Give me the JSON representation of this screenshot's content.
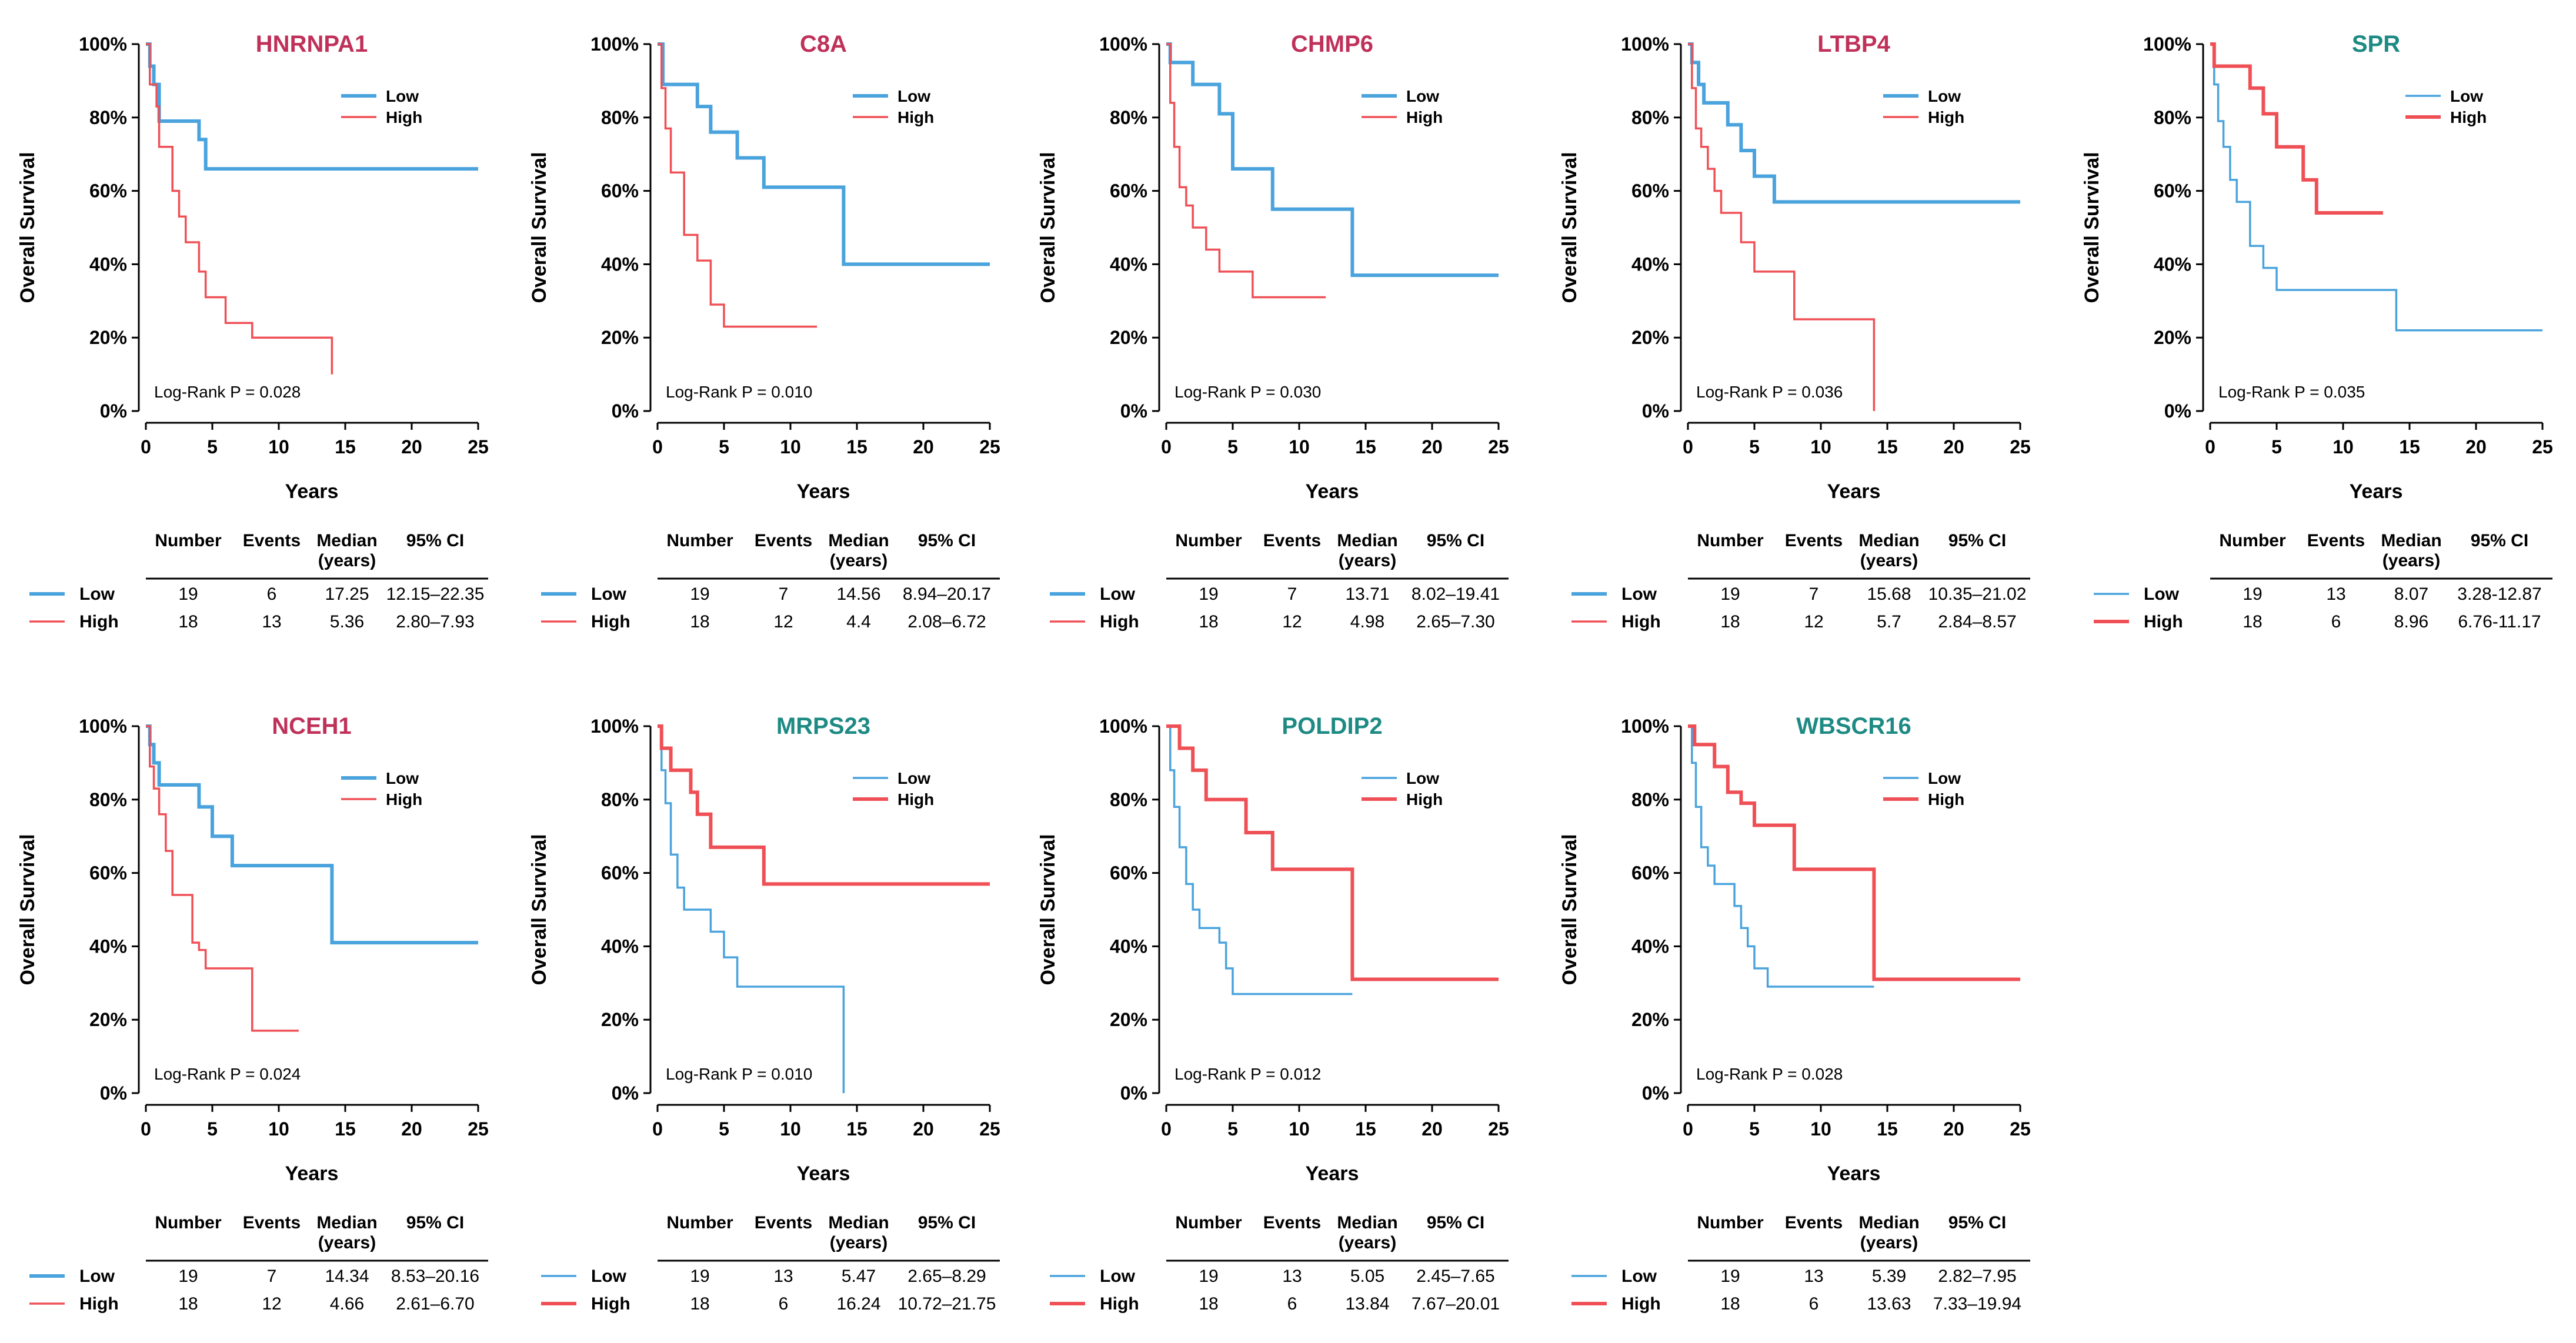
{
  "axis_text": {
    "ylabel": "Overall Survival",
    "xlabel": "Years",
    "log_rank_label": "Log-Rank P = ",
    "y_ticks": [
      "0%",
      "20%",
      "40%",
      "60%",
      "80%",
      "100%"
    ],
    "x_ticks": [
      "0",
      "5",
      "10",
      "15",
      "20",
      "25"
    ]
  },
  "table_headers": {
    "number": "Number",
    "events": "Events",
    "median_line1": "Median",
    "median_line2": "(years)",
    "ci": "95% CI"
  },
  "legend_labels": {
    "low": "Low",
    "high": "High"
  },
  "colors": {
    "low": "#4aa3dd",
    "high": "#ef5056",
    "title_red": "#c0315a",
    "title_teal": "#1d8a83",
    "text": "#000000",
    "axis": "#000000"
  },
  "chart_data": [
    {
      "type": "line",
      "subtype": "kaplan-meier",
      "title": "HNRNPA1",
      "title_color": "red",
      "emphasis": "low",
      "p_value": "0.028",
      "xlim": [
        0,
        25
      ],
      "ylim": [
        0,
        100
      ],
      "series": [
        {
          "name": "Low",
          "x": [
            0,
            0.3,
            0.6,
            1,
            4,
            4.5,
            25
          ],
          "y": [
            100,
            94,
            89,
            79,
            74,
            66,
            66
          ],
          "end_x": 25
        },
        {
          "name": "High",
          "x": [
            0,
            0.3,
            0.8,
            1,
            2,
            2.5,
            3,
            4,
            4.5,
            6,
            8,
            14
          ],
          "y": [
            100,
            89,
            83,
            72,
            60,
            53,
            46,
            38,
            31,
            24,
            20,
            10
          ],
          "end_x": 14
        }
      ],
      "table": {
        "rows": [
          {
            "group": "Low",
            "number": "19",
            "events": "6",
            "median": "17.25",
            "ci": "12.15–22.35"
          },
          {
            "group": "High",
            "number": "18",
            "events": "13",
            "median": "5.36",
            "ci": "2.80–7.93"
          }
        ]
      }
    },
    {
      "type": "line",
      "subtype": "kaplan-meier",
      "title": "C8A",
      "title_color": "red",
      "emphasis": "low",
      "p_value": "0.010",
      "xlim": [
        0,
        25
      ],
      "ylim": [
        0,
        100
      ],
      "series": [
        {
          "name": "Low",
          "x": [
            0,
            0.4,
            3,
            4,
            6,
            8,
            14,
            25
          ],
          "y": [
            100,
            89,
            83,
            76,
            69,
            61,
            40,
            40
          ],
          "end_x": 25
        },
        {
          "name": "High",
          "x": [
            0,
            0.3,
            0.6,
            1,
            2,
            3,
            4,
            5
          ],
          "y": [
            100,
            88,
            77,
            65,
            48,
            41,
            29,
            23
          ],
          "end_x": 12
        }
      ],
      "table": {
        "rows": [
          {
            "group": "Low",
            "number": "19",
            "events": "7",
            "median": "14.56",
            "ci": "8.94–20.17"
          },
          {
            "group": "High",
            "number": "18",
            "events": "12",
            "median": "4.4",
            "ci": "2.08–6.72"
          }
        ]
      }
    },
    {
      "type": "line",
      "subtype": "kaplan-meier",
      "title": "CHMP6",
      "title_color": "red",
      "emphasis": "low",
      "p_value": "0.030",
      "xlim": [
        0,
        25
      ],
      "ylim": [
        0,
        100
      ],
      "series": [
        {
          "name": "Low",
          "x": [
            0,
            0.3,
            2,
            4,
            5,
            8,
            14
          ],
          "y": [
            100,
            95,
            89,
            81,
            66,
            55,
            37
          ],
          "end_x": 25
        },
        {
          "name": "High",
          "x": [
            0,
            0.3,
            0.6,
            1,
            1.5,
            2,
            3,
            4,
            6.5
          ],
          "y": [
            100,
            84,
            72,
            61,
            56,
            50,
            44,
            38,
            31
          ],
          "end_x": 12
        }
      ],
      "table": {
        "rows": [
          {
            "group": "Low",
            "number": "19",
            "events": "7",
            "median": "13.71",
            "ci": "8.02–19.41"
          },
          {
            "group": "High",
            "number": "18",
            "events": "12",
            "median": "4.98",
            "ci": "2.65–7.30"
          }
        ]
      }
    },
    {
      "type": "line",
      "subtype": "kaplan-meier",
      "title": "LTBP4",
      "title_color": "red",
      "emphasis": "low",
      "p_value": "0.036",
      "xlim": [
        0,
        25
      ],
      "ylim": [
        0,
        100
      ],
      "series": [
        {
          "name": "Low",
          "x": [
            0,
            0.3,
            0.8,
            1.2,
            3,
            4,
            5,
            6.5
          ],
          "y": [
            100,
            95,
            89,
            84,
            78,
            71,
            64,
            57
          ],
          "end_x": 25
        },
        {
          "name": "High",
          "x": [
            0,
            0.3,
            0.6,
            1,
            1.5,
            2,
            2.5,
            4,
            5,
            8,
            14
          ],
          "y": [
            100,
            88,
            77,
            72,
            66,
            60,
            54,
            46,
            38,
            25,
            0
          ],
          "end_x": 14
        }
      ],
      "table": {
        "rows": [
          {
            "group": "Low",
            "number": "19",
            "events": "7",
            "median": "15.68",
            "ci": "10.35–21.02"
          },
          {
            "group": "High",
            "number": "18",
            "events": "12",
            "median": "5.7",
            "ci": "2.84–8.57"
          }
        ]
      }
    },
    {
      "type": "line",
      "subtype": "kaplan-meier",
      "title": "SPR",
      "title_color": "teal",
      "emphasis": "high",
      "p_value": "0.035",
      "xlim": [
        0,
        25
      ],
      "ylim": [
        0,
        100
      ],
      "series": [
        {
          "name": "Low",
          "x": [
            0,
            0.3,
            0.6,
            1,
            1.5,
            2,
            3,
            4,
            5,
            14
          ],
          "y": [
            100,
            89,
            79,
            72,
            63,
            57,
            45,
            39,
            33,
            22
          ],
          "end_x": 25
        },
        {
          "name": "High",
          "x": [
            0,
            0.3,
            3,
            4,
            5,
            7,
            8
          ],
          "y": [
            100,
            94,
            88,
            81,
            72,
            63,
            54
          ],
          "end_x": 13
        }
      ],
      "table": {
        "rows": [
          {
            "group": "Low",
            "number": "19",
            "events": "13",
            "median": "8.07",
            "ci": "3.28-12.87"
          },
          {
            "group": "High",
            "number": "18",
            "events": "6",
            "median": "8.96",
            "ci": "6.76-11.17"
          }
        ]
      }
    },
    {
      "type": "line",
      "subtype": "kaplan-meier",
      "title": "NCEH1",
      "title_color": "red",
      "emphasis": "low",
      "p_value": "0.024",
      "xlim": [
        0,
        25
      ],
      "ylim": [
        0,
        100
      ],
      "series": [
        {
          "name": "Low",
          "x": [
            0,
            0.3,
            0.6,
            1,
            4,
            5,
            6.5,
            14
          ],
          "y": [
            100,
            95,
            90,
            84,
            78,
            70,
            62,
            41
          ],
          "end_x": 25
        },
        {
          "name": "High",
          "x": [
            0,
            0.3,
            0.6,
            1,
            1.5,
            2,
            3.5,
            4,
            4.5,
            8
          ],
          "y": [
            100,
            89,
            83,
            76,
            66,
            54,
            41,
            39,
            34,
            17
          ],
          "end_x": 11.5
        }
      ],
      "table": {
        "rows": [
          {
            "group": "Low",
            "number": "19",
            "events": "7",
            "median": "14.34",
            "ci": "8.53–20.16"
          },
          {
            "group": "High",
            "number": "18",
            "events": "12",
            "median": "4.66",
            "ci": "2.61–6.70"
          }
        ]
      }
    },
    {
      "type": "line",
      "subtype": "kaplan-meier",
      "title": "MRPS23",
      "title_color": "teal",
      "emphasis": "high",
      "p_value": "0.010",
      "xlim": [
        0,
        25
      ],
      "ylim": [
        0,
        100
      ],
      "series": [
        {
          "name": "Low",
          "x": [
            0,
            0.3,
            0.6,
            1,
            1.5,
            2,
            4,
            5,
            6,
            14
          ],
          "y": [
            100,
            88,
            79,
            65,
            56,
            50,
            44,
            37,
            29,
            0
          ],
          "end_x": 14
        },
        {
          "name": "High",
          "x": [
            0,
            0.3,
            1,
            2.5,
            3,
            4,
            8
          ],
          "y": [
            100,
            94,
            88,
            82,
            76,
            67,
            57
          ],
          "end_x": 25
        }
      ],
      "table": {
        "rows": [
          {
            "group": "Low",
            "number": "19",
            "events": "13",
            "median": "5.47",
            "ci": "2.65–8.29"
          },
          {
            "group": "High",
            "number": "18",
            "events": "6",
            "median": "16.24",
            "ci": "10.72–21.75"
          }
        ]
      }
    },
    {
      "type": "line",
      "subtype": "kaplan-meier",
      "title": "POLDIP2",
      "title_color": "teal",
      "emphasis": "high",
      "p_value": "0.012",
      "xlim": [
        0,
        25
      ],
      "ylim": [
        0,
        100
      ],
      "series": [
        {
          "name": "Low",
          "x": [
            0,
            0.3,
            0.6,
            1,
            1.5,
            2,
            2.5,
            4,
            4.5,
            5
          ],
          "y": [
            100,
            88,
            78,
            67,
            57,
            50,
            45,
            41,
            34,
            27
          ],
          "end_x": 14
        },
        {
          "name": "High",
          "x": [
            0,
            1,
            2,
            3,
            4,
            6,
            8,
            14
          ],
          "y": [
            100,
            94,
            88,
            80,
            80,
            71,
            61,
            31
          ],
          "end_x": 25
        }
      ],
      "table": {
        "rows": [
          {
            "group": "Low",
            "number": "19",
            "events": "13",
            "median": "5.05",
            "ci": "2.45–7.65"
          },
          {
            "group": "High",
            "number": "18",
            "events": "6",
            "median": "13.84",
            "ci": "7.67–20.01"
          }
        ]
      }
    },
    {
      "type": "line",
      "subtype": "kaplan-meier",
      "title": "WBSCR16",
      "title_color": "teal",
      "emphasis": "high",
      "p_value": "0.028",
      "xlim": [
        0,
        25
      ],
      "ylim": [
        0,
        100
      ],
      "series": [
        {
          "name": "Low",
          "x": [
            0,
            0.3,
            0.6,
            1,
            1.5,
            2,
            3.5,
            4,
            4.5,
            5,
            6
          ],
          "y": [
            100,
            90,
            78,
            67,
            62,
            57,
            51,
            45,
            40,
            34,
            29
          ],
          "end_x": 14
        },
        {
          "name": "High",
          "x": [
            0,
            0.5,
            2,
            3,
            4,
            5,
            8,
            14
          ],
          "y": [
            100,
            95,
            89,
            82,
            79,
            73,
            61,
            31
          ],
          "end_x": 25
        }
      ],
      "table": {
        "rows": [
          {
            "group": "Low",
            "number": "19",
            "events": "13",
            "median": "5.39",
            "ci": "2.82–7.95"
          },
          {
            "group": "High",
            "number": "18",
            "events": "6",
            "median": "13.63",
            "ci": "7.33–19.94"
          }
        ]
      }
    }
  ]
}
